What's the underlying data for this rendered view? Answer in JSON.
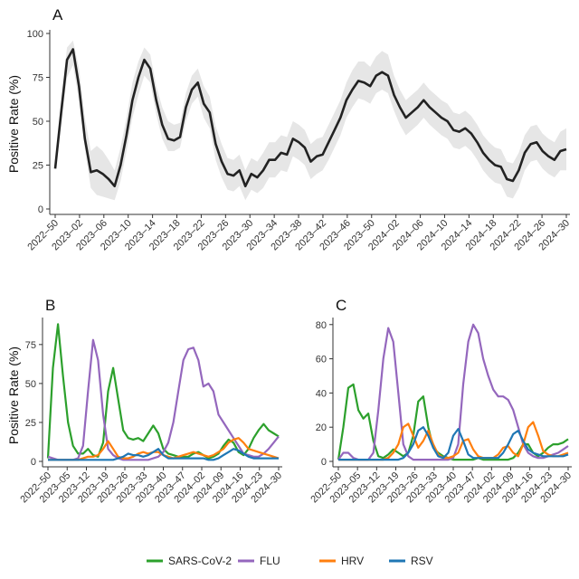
{
  "legend": [
    {
      "name": "SARS-CoV-2",
      "color": "#2ca02c"
    },
    {
      "name": "FLU",
      "color": "#9467bd"
    },
    {
      "name": "HRV",
      "color": "#ff7f0e"
    },
    {
      "name": "RSV",
      "color": "#1f77b4"
    }
  ],
  "chart_data": [
    {
      "panel": "A",
      "type": "area",
      "title": "",
      "xlabel": "",
      "ylabel": "Positive Rate (%)",
      "ylim": [
        0,
        100
      ],
      "yticks": [
        0,
        25,
        50,
        75,
        100
      ],
      "xticks": [
        "2022–50",
        "2023–02",
        "2023–06",
        "2023–10",
        "2023–14",
        "2023–18",
        "2023–22",
        "2023–26",
        "2023–30",
        "2023–34",
        "2023–38",
        "2023–42",
        "2023–46",
        "2023–50",
        "2024–02",
        "2024–06",
        "2024–10",
        "2024–14",
        "2024–18",
        "2024–22",
        "2024–26",
        "2024–30"
      ],
      "grid": false,
      "line_color": "#222222",
      "band_color": "#e6e6e6",
      "series": [
        {
          "values": [
            23,
            55,
            85,
            91,
            70,
            40,
            21,
            22,
            20,
            17,
            13,
            25,
            42,
            62,
            75,
            85,
            80,
            62,
            48,
            40,
            39,
            41,
            58,
            68,
            72,
            60,
            55,
            37,
            27,
            20,
            19,
            22,
            13,
            20,
            18,
            22,
            28,
            28,
            32,
            31,
            40,
            38,
            35,
            27,
            30,
            31,
            38,
            45,
            52,
            62,
            68,
            73,
            72,
            70,
            76,
            78,
            76,
            65,
            58,
            52,
            55,
            58,
            62,
            58,
            55,
            52,
            50,
            45,
            44,
            46,
            43,
            38,
            32,
            28,
            25,
            24,
            17,
            16,
            22,
            32,
            37,
            38,
            33,
            30,
            28,
            33,
            34
          ]
        },
        {
          "name": "lower",
          "values": [
            22,
            48,
            75,
            82,
            62,
            34,
            12,
            8,
            7,
            6,
            5,
            16,
            33,
            52,
            65,
            76,
            72,
            54,
            40,
            33,
            33,
            35,
            50,
            60,
            64,
            52,
            46,
            28,
            18,
            11,
            10,
            13,
            5,
            11,
            9,
            12,
            18,
            18,
            22,
            21,
            30,
            28,
            25,
            17,
            20,
            22,
            28,
            35,
            42,
            52,
            58,
            63,
            62,
            60,
            66,
            68,
            66,
            56,
            48,
            42,
            45,
            48,
            52,
            48,
            45,
            42,
            40,
            35,
            34,
            36,
            33,
            28,
            22,
            18,
            15,
            14,
            7,
            6,
            12,
            22,
            27,
            28,
            23,
            20,
            18,
            22,
            22
          ]
        },
        {
          "name": "upper",
          "values": [
            25,
            62,
            92,
            96,
            80,
            52,
            33,
            36,
            33,
            28,
            22,
            35,
            52,
            72,
            84,
            92,
            88,
            70,
            58,
            50,
            48,
            49,
            66,
            76,
            80,
            70,
            64,
            47,
            37,
            29,
            28,
            31,
            22,
            29,
            27,
            32,
            38,
            38,
            42,
            41,
            50,
            48,
            45,
            37,
            40,
            41,
            48,
            55,
            62,
            72,
            79,
            84,
            84,
            81,
            87,
            90,
            88,
            76,
            68,
            62,
            65,
            68,
            72,
            68,
            65,
            62,
            60,
            55,
            54,
            56,
            53,
            48,
            42,
            38,
            35,
            34,
            27,
            26,
            32,
            42,
            47,
            48,
            43,
            40,
            38,
            44,
            46
          ]
        }
      ]
    },
    {
      "panel": "B",
      "type": "line",
      "title": "",
      "xlabel": "",
      "ylabel": "Positive Rate (%)",
      "ylim": [
        0,
        90
      ],
      "yticks": [
        0,
        25,
        50,
        75
      ],
      "xticks": [
        "2022–50",
        "2023–05",
        "2023–12",
        "2023–19",
        "2023–26",
        "2023–33",
        "2023–40",
        "2023–47",
        "2024–02",
        "2024–09",
        "2024–16",
        "2024–23",
        "2024–30"
      ],
      "grid": false,
      "series": [
        {
          "name": "SARS-CoV-2",
          "values": [
            2,
            60,
            88,
            55,
            25,
            10,
            5,
            5,
            8,
            4,
            3,
            12,
            45,
            60,
            40,
            20,
            15,
            14,
            15,
            13,
            18,
            23,
            18,
            8,
            5,
            4,
            3,
            3,
            3,
            5,
            6,
            4,
            2,
            3,
            5,
            10,
            14,
            12,
            6,
            4,
            8,
            15,
            20,
            24,
            20,
            18,
            16
          ]
        },
        {
          "name": "FLU",
          "values": [
            3,
            2,
            1,
            1,
            1,
            1,
            2,
            10,
            45,
            78,
            65,
            30,
            8,
            4,
            2,
            1,
            1,
            1,
            1,
            1,
            1,
            2,
            3,
            6,
            12,
            25,
            45,
            65,
            72,
            73,
            65,
            48,
            50,
            45,
            30,
            25,
            20,
            15,
            10,
            5,
            4,
            3,
            3,
            5,
            8,
            12,
            16
          ]
        },
        {
          "name": "HRV",
          "values": [
            1,
            1,
            1,
            1,
            1,
            1,
            1,
            2,
            3,
            3,
            4,
            8,
            13,
            8,
            3,
            2,
            2,
            3,
            5,
            6,
            5,
            6,
            6,
            4,
            3,
            2,
            3,
            4,
            5,
            6,
            5,
            4,
            3,
            4,
            6,
            8,
            12,
            14,
            15,
            12,
            8,
            7,
            6,
            5,
            4,
            3,
            2
          ]
        },
        {
          "name": "RSV",
          "values": [
            1,
            1,
            1,
            1,
            1,
            1,
            1,
            1,
            1,
            1,
            1,
            1,
            1,
            1,
            2,
            3,
            5,
            4,
            4,
            3,
            4,
            6,
            8,
            4,
            2,
            2,
            2,
            2,
            2,
            2,
            2,
            2,
            1,
            1,
            2,
            4,
            6,
            8,
            7,
            5,
            3,
            2,
            2,
            2,
            2,
            2,
            2
          ]
        }
      ]
    },
    {
      "panel": "C",
      "type": "line",
      "title": "",
      "xlabel": "",
      "ylabel": "",
      "ylim": [
        0,
        82
      ],
      "yticks": [
        0,
        20,
        40,
        60,
        80
      ],
      "xticks": [
        "2022–50",
        "2023–05",
        "2023–12",
        "2023–19",
        "2023–26",
        "2023–33",
        "2023–40",
        "2023–47",
        "2024–02",
        "2024–09",
        "2024–16",
        "2024–23",
        "2024–30"
      ],
      "grid": false,
      "series": [
        {
          "name": "SARS-CoV-2",
          "values": [
            1,
            20,
            43,
            45,
            30,
            25,
            28,
            12,
            3,
            2,
            4,
            7,
            5,
            3,
            5,
            15,
            35,
            38,
            20,
            8,
            5,
            3,
            2,
            1,
            1,
            1,
            1,
            1,
            2,
            1,
            1,
            1,
            1,
            1,
            1,
            2,
            5,
            10,
            10,
            5,
            3,
            5,
            8,
            10,
            10,
            11,
            13
          ]
        },
        {
          "name": "FLU",
          "values": [
            1,
            5,
            5,
            2,
            1,
            1,
            1,
            5,
            30,
            60,
            78,
            70,
            40,
            10,
            3,
            1,
            1,
            1,
            1,
            1,
            1,
            1,
            1,
            2,
            10,
            45,
            70,
            80,
            75,
            60,
            50,
            42,
            38,
            38,
            36,
            30,
            20,
            10,
            5,
            3,
            2,
            2,
            3,
            4,
            5,
            7,
            9
          ]
        },
        {
          "name": "HRV",
          "values": [
            1,
            1,
            1,
            1,
            1,
            1,
            1,
            1,
            1,
            1,
            2,
            5,
            10,
            20,
            22,
            15,
            8,
            12,
            18,
            10,
            4,
            2,
            2,
            3,
            5,
            12,
            13,
            7,
            3,
            2,
            2,
            2,
            4,
            8,
            9,
            5,
            3,
            10,
            20,
            23,
            15,
            6,
            4,
            3,
            3,
            4,
            5
          ]
        },
        {
          "name": "RSV",
          "values": [
            1,
            1,
            1,
            1,
            1,
            1,
            1,
            1,
            1,
            1,
            1,
            1,
            1,
            2,
            5,
            10,
            18,
            20,
            15,
            8,
            3,
            2,
            5,
            15,
            19,
            12,
            4,
            2,
            2,
            2,
            2,
            2,
            2,
            5,
            10,
            16,
            18,
            12,
            7,
            5,
            4,
            3,
            3,
            3,
            3,
            3,
            4
          ]
        }
      ]
    }
  ]
}
